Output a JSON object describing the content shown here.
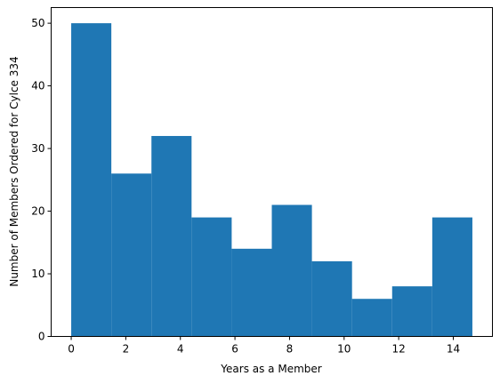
{
  "chart_data": {
    "type": "bar",
    "subtype": "histogram",
    "title": "",
    "xlabel": "Years as a Member",
    "ylabel": "Number of Members Ordered for Cylce 334",
    "bin_edges": [
      0,
      1.47,
      2.94,
      4.41,
      5.88,
      7.35,
      8.82,
      10.29,
      11.76,
      13.23,
      14.7
    ],
    "values": [
      50,
      26,
      32,
      19,
      14,
      21,
      12,
      6,
      8,
      19
    ],
    "xlim": [
      -0.735,
      15.435
    ],
    "ylim": [
      0,
      52.5
    ],
    "xticks": [
      0,
      2,
      4,
      6,
      8,
      10,
      12,
      14
    ],
    "yticks": [
      0,
      10,
      20,
      30,
      40,
      50
    ],
    "bar_color": "#1f77b4",
    "grid": false,
    "legend": "none"
  }
}
